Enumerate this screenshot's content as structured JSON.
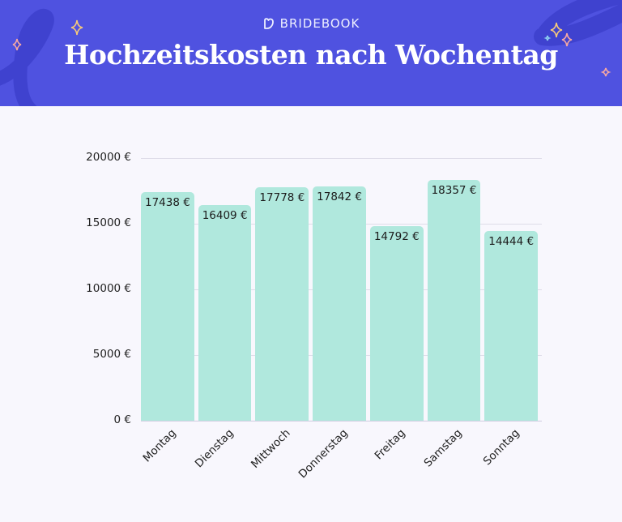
{
  "header": {
    "brand": "BRIDEBOOK",
    "title": "Hochzeitskosten nach Wochentag",
    "background": "#4f52e0"
  },
  "chart_data": {
    "type": "bar",
    "title": "Hochzeitskosten nach Wochentag",
    "xlabel": "",
    "ylabel": "",
    "categories": [
      "Montag",
      "Dienstag",
      "Mittwoch",
      "Donnerstag",
      "Freitag",
      "Samstag",
      "Sonntag"
    ],
    "values": [
      17438,
      16409,
      17778,
      17842,
      14792,
      18357,
      14444
    ],
    "value_labels": [
      "17438 €",
      "16409 €",
      "17778 €",
      "17842 €",
      "14792 €",
      "18357 €",
      "14444 €"
    ],
    "ylim": [
      0,
      20000
    ],
    "yticks": [
      0,
      5000,
      10000,
      15000,
      20000
    ],
    "ytick_labels": [
      "0 €",
      "5000 €",
      "10000 €",
      "15000 €",
      "20000 €"
    ],
    "grid": true,
    "legend": null,
    "bar_color": "#b0e8dd"
  }
}
